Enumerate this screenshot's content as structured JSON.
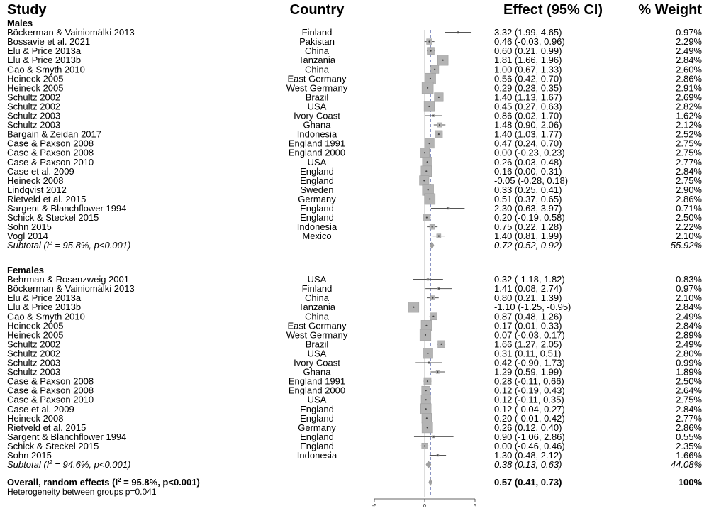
{
  "headers": {
    "study": "Study",
    "country": "Country",
    "effect": "Effect (95% CI)",
    "weight": "% Weight"
  },
  "chart_data": {
    "type": "forest",
    "xlim": [
      -5,
      5
    ],
    "ticks": [
      -5,
      0,
      5
    ],
    "null_line": 0,
    "groups": [
      {
        "label": "Males",
        "rows": [
          {
            "study": "Böckerman & Vainiomälki 2013",
            "country": "Finland",
            "est": 3.32,
            "lo": 1.99,
            "hi": 4.65,
            "ci": "3.32 (1.99, 4.65)",
            "weight": "0.97%"
          },
          {
            "study": "Bossavie et al. 2021",
            "country": "Pakistan",
            "est": 0.46,
            "lo": -0.03,
            "hi": 0.96,
            "ci": "0.46 (-0.03, 0.96)",
            "weight": "2.29%"
          },
          {
            "study": "Elu & Price 2013a",
            "country": "China",
            "est": 0.6,
            "lo": 0.21,
            "hi": 0.99,
            "ci": "0.60 (0.21, 0.99)",
            "weight": "2.49%"
          },
          {
            "study": "Elu & Price 2013b",
            "country": "Tanzania",
            "est": 1.81,
            "lo": 1.66,
            "hi": 1.96,
            "ci": "1.81 (1.66, 1.96)",
            "weight": "2.84%"
          },
          {
            "study": "Gao & Smyth 2010",
            "country": "China",
            "est": 1.0,
            "lo": 0.67,
            "hi": 1.33,
            "ci": "1.00 (0.67, 1.33)",
            "weight": "2.60%"
          },
          {
            "study": "Heineck 2005",
            "country": "East Germany",
            "est": 0.56,
            "lo": 0.42,
            "hi": 0.7,
            "ci": "0.56 (0.42, 0.70)",
            "weight": "2.86%"
          },
          {
            "study": "Heineck 2005",
            "country": "West Germany",
            "est": 0.29,
            "lo": 0.23,
            "hi": 0.35,
            "ci": "0.29 (0.23, 0.35)",
            "weight": "2.91%"
          },
          {
            "study": "Schultz 2002",
            "country": "Brazil",
            "est": 1.4,
            "lo": 1.13,
            "hi": 1.67,
            "ci": "1.40 (1.13, 1.67)",
            "weight": "2.69%"
          },
          {
            "study": "Schultz 2002",
            "country": "USA",
            "est": 0.45,
            "lo": 0.27,
            "hi": 0.63,
            "ci": "0.45 (0.27, 0.63)",
            "weight": "2.82%"
          },
          {
            "study": "Schultz 2003",
            "country": "Ivory Coast",
            "est": 0.86,
            "lo": 0.02,
            "hi": 1.7,
            "ci": "0.86 (0.02, 1.70)",
            "weight": "1.62%"
          },
          {
            "study": "Schultz 2003",
            "country": "Ghana",
            "est": 1.48,
            "lo": 0.9,
            "hi": 2.06,
            "ci": "1.48 (0.90, 2.06)",
            "weight": "2.12%"
          },
          {
            "study": "Bargain & Zeidan 2017",
            "country": "Indonesia",
            "est": 1.4,
            "lo": 1.03,
            "hi": 1.77,
            "ci": "1.40 (1.03, 1.77)",
            "weight": "2.52%"
          },
          {
            "study": "Case & Paxson 2008",
            "country": "England 1991",
            "est": 0.47,
            "lo": 0.24,
            "hi": 0.7,
            "ci": "0.47 (0.24, 0.70)",
            "weight": "2.75%"
          },
          {
            "study": "Case & Paxson 2008",
            "country": "England 2000",
            "est": 0.0,
            "lo": -0.23,
            "hi": 0.23,
            "ci": "0.00 (-0.23, 0.23)",
            "weight": "2.75%"
          },
          {
            "study": "Case & Paxson 2010",
            "country": "USA",
            "est": 0.26,
            "lo": 0.03,
            "hi": 0.48,
            "ci": "0.26 (0.03, 0.48)",
            "weight": "2.77%"
          },
          {
            "study": "Case et al. 2009",
            "country": "England",
            "est": 0.16,
            "lo": 0.0,
            "hi": 0.31,
            "ci": "0.16 (0.00, 0.31)",
            "weight": "2.84%"
          },
          {
            "study": "Heineck 2008",
            "country": "England",
            "est": -0.05,
            "lo": -0.28,
            "hi": 0.18,
            "ci": "-0.05 (-0.28, 0.18)",
            "weight": "2.75%"
          },
          {
            "study": "Lindqvist 2012",
            "country": "Sweden",
            "est": 0.33,
            "lo": 0.25,
            "hi": 0.41,
            "ci": "0.33 (0.25, 0.41)",
            "weight": "2.90%"
          },
          {
            "study": "Rietveld et al. 2015",
            "country": "Germany",
            "est": 0.51,
            "lo": 0.37,
            "hi": 0.65,
            "ci": "0.51 (0.37, 0.65)",
            "weight": "2.86%"
          },
          {
            "study": "Sargent & Blanchflower 1994",
            "country": "England",
            "est": 2.3,
            "lo": 0.63,
            "hi": 3.97,
            "ci": "2.30 (0.63, 3.97)",
            "weight": "0.71%"
          },
          {
            "study": "Schick & Steckel 2015",
            "country": "England",
            "est": 0.2,
            "lo": -0.19,
            "hi": 0.58,
            "ci": "0.20 (-0.19, 0.58)",
            "weight": "2.50%"
          },
          {
            "study": "Sohn 2015",
            "country": "Indonesia",
            "est": 0.75,
            "lo": 0.22,
            "hi": 1.28,
            "ci": "0.75 (0.22, 1.28)",
            "weight": "2.22%"
          },
          {
            "study": "Vogl 2014",
            "country": "Mexico",
            "est": 1.4,
            "lo": 0.81,
            "hi": 1.99,
            "ci": "1.40 (0.81, 1.99)",
            "weight": "2.10%"
          }
        ],
        "subtotal": {
          "label": "Subtotal (I",
          "sup": "2",
          "label_rest": " = 95.8%, p<0.001)",
          "est": 0.72,
          "lo": 0.52,
          "hi": 0.92,
          "ci": "0.72 (0.52, 0.92)",
          "weight": "55.92%"
        }
      },
      {
        "label": "Females",
        "rows": [
          {
            "study": "Behrman & Rosenzweig 2001",
            "country": "USA",
            "est": 0.32,
            "lo": -1.18,
            "hi": 1.82,
            "ci": "0.32 (-1.18, 1.82)",
            "weight": "0.83%"
          },
          {
            "study": "Böckerman & Vainiomälki 2013",
            "country": "Finland",
            "est": 1.41,
            "lo": 0.08,
            "hi": 2.74,
            "ci": "1.41 (0.08, 2.74)",
            "weight": "0.97%"
          },
          {
            "study": "Elu & Price 2013a",
            "country": "China",
            "est": 0.8,
            "lo": 0.21,
            "hi": 1.39,
            "ci": "0.80 (0.21, 1.39)",
            "weight": "2.10%"
          },
          {
            "study": "Elu & Price 2013b",
            "country": "Tanzania",
            "est": -1.1,
            "lo": -1.25,
            "hi": -0.95,
            "ci": "-1.10 (-1.25, -0.95)",
            "weight": "2.84%"
          },
          {
            "study": "Gao & Smyth 2010",
            "country": "China",
            "est": 0.87,
            "lo": 0.48,
            "hi": 1.26,
            "ci": "0.87 (0.48, 1.26)",
            "weight": "2.49%"
          },
          {
            "study": "Heineck 2005",
            "country": "East Germany",
            "est": 0.17,
            "lo": 0.01,
            "hi": 0.33,
            "ci": "0.17 (0.01, 0.33)",
            "weight": "2.84%"
          },
          {
            "study": "Heineck 2005",
            "country": "West Germany",
            "est": 0.07,
            "lo": -0.03,
            "hi": 0.17,
            "ci": "0.07 (-0.03, 0.17)",
            "weight": "2.89%"
          },
          {
            "study": "Schultz 2002",
            "country": "Brazil",
            "est": 1.66,
            "lo": 1.27,
            "hi": 2.05,
            "ci": "1.66 (1.27, 2.05)",
            "weight": "2.49%"
          },
          {
            "study": "Schultz 2002",
            "country": "USA",
            "est": 0.31,
            "lo": 0.11,
            "hi": 0.51,
            "ci": "0.31 (0.11, 0.51)",
            "weight": "2.80%"
          },
          {
            "study": "Schultz 2003",
            "country": "Ivory Coast",
            "est": 0.42,
            "lo": -0.9,
            "hi": 1.73,
            "ci": "0.42 (-0.90, 1.73)",
            "weight": "0.99%"
          },
          {
            "study": "Schultz 2003",
            "country": "Ghana",
            "est": 1.29,
            "lo": 0.59,
            "hi": 1.99,
            "ci": "1.29 (0.59, 1.99)",
            "weight": "1.89%"
          },
          {
            "study": "Case & Paxson 2008",
            "country": "England 1991",
            "est": 0.28,
            "lo": -0.11,
            "hi": 0.66,
            "ci": "0.28 (-0.11, 0.66)",
            "weight": "2.50%"
          },
          {
            "study": "Case & Paxson 2008",
            "country": "England 2000",
            "est": 0.12,
            "lo": -0.19,
            "hi": 0.43,
            "ci": "0.12 (-0.19, 0.43)",
            "weight": "2.64%"
          },
          {
            "study": "Case & Paxson 2010",
            "country": "USA",
            "est": 0.12,
            "lo": -0.11,
            "hi": 0.35,
            "ci": "0.12 (-0.11, 0.35)",
            "weight": "2.75%"
          },
          {
            "study": "Case et al. 2009",
            "country": "England",
            "est": 0.12,
            "lo": -0.04,
            "hi": 0.27,
            "ci": "0.12 (-0.04, 0.27)",
            "weight": "2.84%"
          },
          {
            "study": "Heineck 2008",
            "country": "England",
            "est": 0.2,
            "lo": -0.01,
            "hi": 0.42,
            "ci": "0.20 (-0.01, 0.42)",
            "weight": "2.77%"
          },
          {
            "study": "Rietveld et al. 2015",
            "country": "Germany",
            "est": 0.26,
            "lo": 0.12,
            "hi": 0.4,
            "ci": "0.26 (0.12, 0.40)",
            "weight": "2.86%"
          },
          {
            "study": "Sargent & Blanchflower 1994",
            "country": "England",
            "est": 0.9,
            "lo": -1.06,
            "hi": 2.86,
            "ci": "0.90 (-1.06, 2.86)",
            "weight": "0.55%"
          },
          {
            "study": "Schick & Steckel 2015",
            "country": "England",
            "est": 0.0,
            "lo": -0.46,
            "hi": 0.46,
            "ci": "0.00 (-0.46, 0.46)",
            "weight": "2.35%"
          },
          {
            "study": "Sohn 2015",
            "country": "Indonesia",
            "est": 1.3,
            "lo": 0.48,
            "hi": 2.12,
            "ci": "1.30 (0.48, 2.12)",
            "weight": "1.66%"
          }
        ],
        "subtotal": {
          "label": "Subtotal (I",
          "sup": "2",
          "label_rest": " = 94.6%, p<0.001)",
          "est": 0.38,
          "lo": 0.13,
          "hi": 0.63,
          "ci": "0.38 (0.13, 0.63)",
          "weight": "44.08%"
        }
      }
    ],
    "overall": {
      "label": "Overall, random effects (I",
      "sup": "2",
      "label_rest": " = 95.8%, p<0.001)",
      "est": 0.57,
      "lo": 0.41,
      "hi": 0.73,
      "ci": "0.57 (0.41, 0.73)",
      "weight": "100%"
    },
    "heterogeneity": "Heterogeneity between groups p=0.041"
  }
}
